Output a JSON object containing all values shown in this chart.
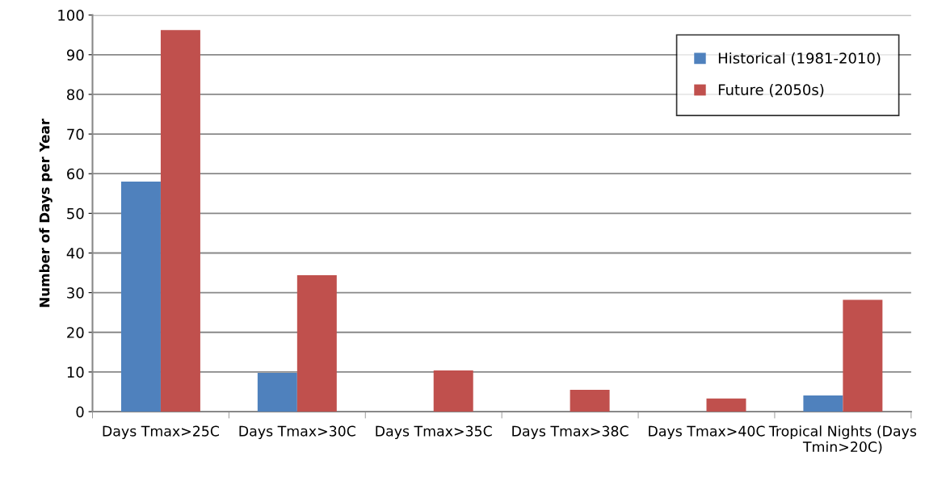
{
  "chart_data": {
    "type": "bar",
    "ylabel": "Number of Days per Year",
    "categories": [
      "Days Tmax>25C",
      "Days Tmax>30C",
      "Days Tmax>35C",
      "Days Tmax>38C",
      "Days Tmax>40C",
      "Tropical Nights (Days Tmin>20C)"
    ],
    "series": [
      {
        "name": "Historical (1981-2010)",
        "color": "#4f81bd",
        "values": [
          58,
          9.8,
          0,
          0,
          0,
          4.1
        ]
      },
      {
        "name": "Future (2050s)",
        "color": "#c0504d",
        "values": [
          96.2,
          34.4,
          10.4,
          5.5,
          3.3,
          28.2
        ]
      }
    ],
    "ylim": [
      0,
      100
    ],
    "yticks": [
      0,
      10,
      20,
      30,
      40,
      50,
      60,
      70,
      80,
      90,
      100
    ],
    "grid": "y",
    "legend": "top right"
  }
}
